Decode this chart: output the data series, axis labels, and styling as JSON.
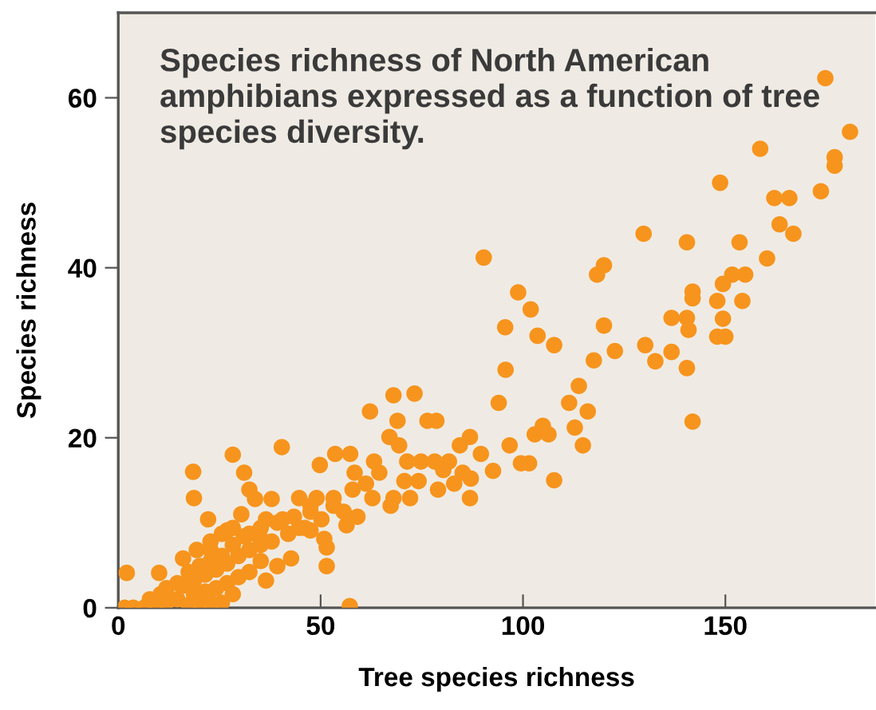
{
  "chart_data": {
    "type": "scatter",
    "title": "Species richness of North American amphibians expressed as a function of tree species diversity.",
    "xlabel": "Tree species richness",
    "ylabel": "Species richness",
    "xlim": [
      0,
      187
    ],
    "ylim": [
      0,
      70
    ],
    "xticks": [
      0,
      50,
      100,
      150
    ],
    "yticks": [
      0,
      20,
      40,
      60
    ],
    "grid": false,
    "marker": "circle",
    "series": [
      {
        "color": "#f7941d",
        "x": [
          174.7,
          180.8,
          158.6,
          177,
          177,
          148.7,
          173.6,
          162.1,
          165.8,
          163.4,
          166.8,
          129.8,
          140.5,
          153.5,
          160.3,
          90.3,
          120,
          118.3,
          151.7,
          154.9,
          149.4,
          98.8,
          141.9,
          141.9,
          148,
          154.2,
          101.9,
          136.7,
          140.5,
          149.4,
          95.6,
          120,
          140.9,
          103.6,
          148,
          150,
          107.7,
          130.2,
          122.7,
          132.7,
          136.7,
          117.5,
          95.7,
          140.5,
          113.8,
          68,
          73.2,
          94,
          111.4,
          62.2,
          116,
          69,
          76.4,
          78.6,
          141.9,
          104.9,
          112.8,
          102.9,
          106.3,
          67,
          86.9,
          69.4,
          96.7,
          114.8,
          40.4,
          84.4,
          28.3,
          53.6,
          57.3,
          89.6,
          49.8,
          71.4,
          74.8,
          78.2,
          81.7,
          99.5,
          101.5,
          18.5,
          31.1,
          63.2,
          58.4,
          64.5,
          92.6,
          80.3,
          85.1,
          74.2,
          107.7,
          70.7,
          83,
          87.1,
          79,
          32.4,
          57.9,
          61.2,
          72.1,
          18.7,
          37.9,
          62.8,
          86.9,
          33.8,
          67.3,
          68,
          44.7,
          49,
          53.2,
          47.5,
          53.2,
          55.7,
          30.4,
          59.1,
          36.5,
          40.6,
          22.2,
          56.4,
          44.7,
          26.9,
          47.5,
          32.4,
          50.9,
          35.2,
          22.8,
          19.4,
          51.5,
          42.7,
          16,
          51.5,
          39.3,
          2.1,
          10.1,
          36.5,
          57.2,
          1.6,
          3.7,
          6.4,
          9.2,
          11.9,
          14.6,
          17.4,
          20.1,
          22.8,
          25.6,
          7.8,
          10.5,
          16,
          18.7,
          21.5,
          24.2,
          26.9,
          29.7,
          32.4,
          35.2,
          37.9,
          42,
          46.1,
          50.2,
          18.7,
          21.5,
          24.2,
          26.9,
          29.7,
          32.4,
          35.2,
          28.3,
          25.6,
          22.8,
          20.1,
          17.4,
          28.3,
          31,
          35.2,
          39.3,
          43.4,
          47.5,
          25.6,
          28.3,
          22.8,
          11.9,
          14.6
        ],
        "values": [
          62.3,
          56,
          54,
          53,
          52,
          50,
          49,
          48.2,
          48.2,
          45.1,
          44,
          44,
          43,
          43,
          41.1,
          41.2,
          40.3,
          39.2,
          39.2,
          39.2,
          38.1,
          37.1,
          37.2,
          36.4,
          36.1,
          36.1,
          35.1,
          34.1,
          34.1,
          34,
          33,
          33.2,
          32.7,
          32,
          31.9,
          31.9,
          30.9,
          30.9,
          30.2,
          29,
          30.1,
          29.1,
          28,
          28.2,
          26.1,
          25,
          25.2,
          24.1,
          24.1,
          23.1,
          23.1,
          22,
          22,
          22,
          21.9,
          21.4,
          21.2,
          20.4,
          20.4,
          20.1,
          20.1,
          19.1,
          19.1,
          19.1,
          18.9,
          19.1,
          18,
          18.1,
          18.1,
          18.1,
          16.8,
          17.2,
          17.2,
          17.2,
          17.2,
          17,
          17,
          16,
          15.9,
          17.2,
          15.9,
          15.9,
          16.1,
          16.2,
          15.9,
          14.9,
          15,
          14.9,
          14.6,
          15.2,
          13.9,
          13.9,
          13.9,
          14.6,
          12.9,
          12.9,
          12.8,
          12.9,
          12.9,
          12.8,
          12,
          12.9,
          12.9,
          12.9,
          12.9,
          12,
          12,
          11.3,
          11,
          10.7,
          10.4,
          10.4,
          10.4,
          9.7,
          9.4,
          9.1,
          9.1,
          8.7,
          8.1,
          8.1,
          7.8,
          6.8,
          7.1,
          5.8,
          5.8,
          4.9,
          4.9,
          4.1,
          4.1,
          3.2,
          0.2,
          0,
          0,
          0,
          0.3,
          0.6,
          1,
          0.3,
          0.6,
          0.6,
          0.6,
          1,
          1.6,
          2.6,
          3.2,
          3.9,
          4.5,
          5.2,
          6.1,
          6.8,
          7.4,
          7.8,
          8.7,
          9.4,
          10.4,
          1.6,
          1.9,
          2.3,
          2.9,
          3.6,
          4.2,
          5.5,
          1.6,
          6.1,
          5.5,
          4.9,
          4.2,
          7.4,
          8.4,
          9.4,
          10,
          10.7,
          11.3,
          8.7,
          9.4,
          6.8,
          2.3,
          2.9
        ]
      }
    ]
  }
}
